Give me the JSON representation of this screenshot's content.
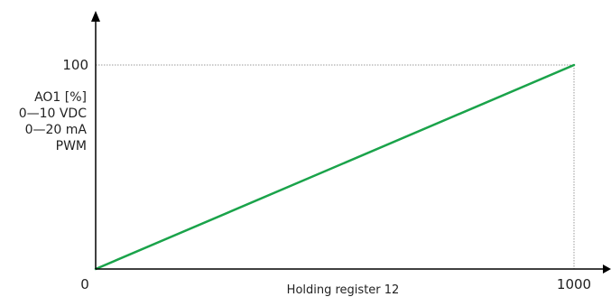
{
  "chart_data": {
    "type": "line",
    "title": "",
    "xlabel": "Holding register 12",
    "ylabel_lines": [
      "AO1 [%]",
      "0—10 VDC",
      "0—20 mA",
      "PWM"
    ],
    "xlim": [
      0,
      1000
    ],
    "ylim": [
      0,
      100
    ],
    "origin_label": "0",
    "x_ticks": [
      {
        "value": 1000,
        "label": "1000"
      }
    ],
    "y_ticks": [
      {
        "value": 100,
        "label": "100"
      }
    ],
    "series": [
      {
        "x": [
          0,
          1000
        ],
        "y": [
          0,
          100
        ],
        "color": "#1aa34a"
      }
    ],
    "reference_lines": [
      {
        "x": 1000,
        "y": 100,
        "style": "dotted",
        "color": "#999999"
      }
    ],
    "grid": false,
    "axis_color": "#000000"
  }
}
